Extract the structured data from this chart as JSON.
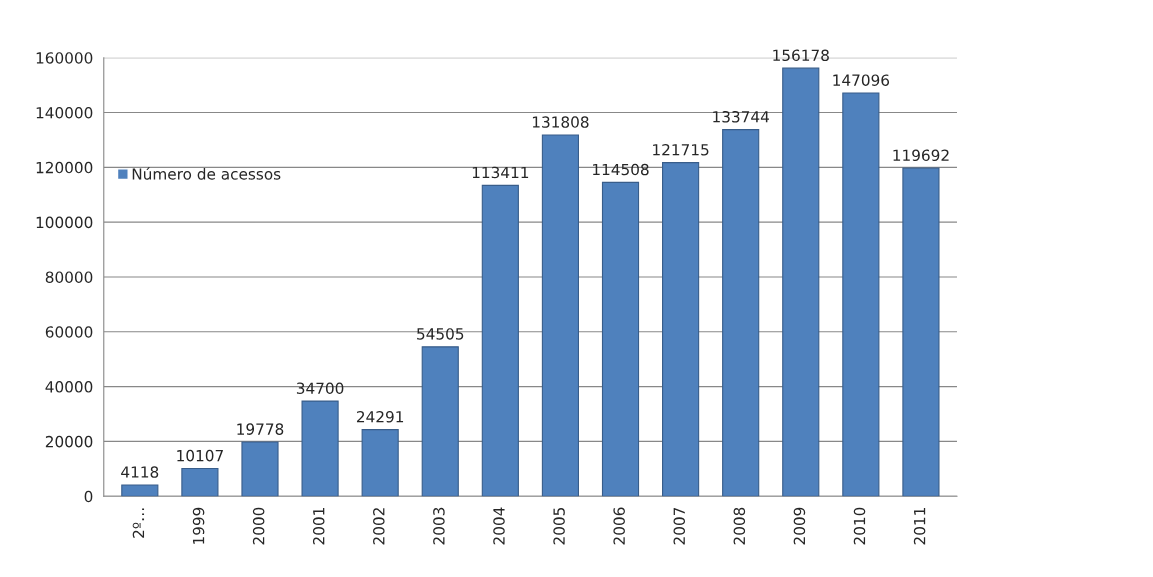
{
  "chart_data": {
    "type": "bar",
    "categories": [
      "2º…",
      "1999",
      "2000",
      "2001",
      "2002",
      "2003",
      "2004",
      "2005",
      "2006",
      "2007",
      "2008",
      "2009",
      "2010",
      "2011"
    ],
    "series": [
      {
        "name": "Número de acessos",
        "color": "#4f81bd",
        "values": [
          4118,
          10107,
          19778,
          34700,
          24291,
          54505,
          113411,
          131808,
          114508,
          121715,
          133744,
          156178,
          147096,
          119692
        ]
      }
    ],
    "ylim": [
      0,
      160000
    ],
    "yticks": [
      0,
      20000,
      40000,
      60000,
      80000,
      100000,
      120000,
      140000,
      160000
    ],
    "grid": "y",
    "legend": "top left",
    "data_labels": true
  }
}
